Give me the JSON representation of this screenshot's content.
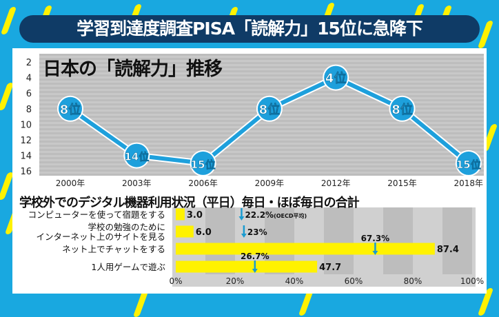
{
  "headline": "学習到達度調査PISA「読解力」15位に急降下",
  "colors": {
    "background": "#19a8e0",
    "line": "#1ea0dc",
    "bar": "#fff200",
    "arrow": "#1a9bd0",
    "banner": "#0f3b66"
  },
  "chart_data": [
    {
      "type": "line",
      "title": "日本の「読解力」推移",
      "categories": [
        "2000年",
        "2003年",
        "2006年",
        "2009年",
        "2012年",
        "2015年",
        "2018年"
      ],
      "values": [
        8,
        14,
        15,
        8,
        4,
        8,
        15
      ],
      "point_labels": [
        "8位",
        "14位",
        "15位",
        "8位",
        "4位",
        "8位",
        "15位"
      ],
      "y_ticks": [
        "2",
        "4",
        "6",
        "8",
        "10",
        "12",
        "14",
        "16"
      ],
      "ylim": [
        16,
        1
      ],
      "y_inverted": true
    },
    {
      "type": "bar",
      "orientation": "horizontal",
      "title": "学校外でのデジタル機器利用状況（平日）毎日・ほぼ毎日の合計",
      "categories": [
        "コンピューターを使って宿題をする",
        "学校の勉強のために\nインターネット上のサイトを見る",
        "ネット上でチャットをする",
        "1人用ゲームで遊ぶ"
      ],
      "values": [
        3.0,
        6.0,
        87.4,
        47.7
      ],
      "value_labels": [
        "3.0",
        "6.0",
        "87.4",
        "47.7"
      ],
      "oecd_values": [
        22.2,
        23,
        67.3,
        26.7
      ],
      "oecd_labels": [
        "22.2%",
        "23%",
        "67.3%",
        "26.7%"
      ],
      "oecd_note": "(OECD平均)",
      "x_ticks": [
        "0%",
        "20%",
        "40%",
        "60%",
        "80%",
        "100%"
      ],
      "xlim": [
        0,
        100
      ]
    }
  ]
}
